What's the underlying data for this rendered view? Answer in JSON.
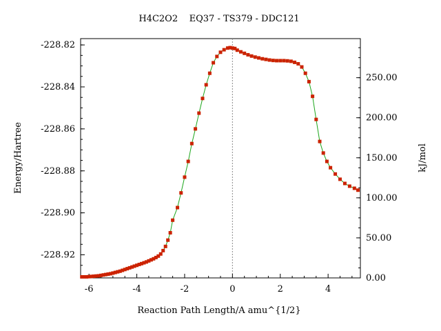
{
  "chart_data": {
    "type": "line",
    "title": "H4C2O2    EQ37 - TS379 - DDC121",
    "xlabel": "Reaction Path Length/A amu^{1/2}",
    "ylabel": "Energy/Hartree",
    "y2label": "kJ/mol",
    "xlim": [
      -6.35,
      5.35
    ],
    "ylim": [
      -228.931,
      -228.817
    ],
    "y2lim": [
      0,
      298.8
    ],
    "x_ticks": [
      -6,
      -4,
      -2,
      0,
      2,
      4
    ],
    "x_tick_labels": [
      "-6",
      "-4",
      "-2",
      "0",
      "2",
      "4"
    ],
    "y_ticks": [
      -228.82,
      -228.84,
      -228.86,
      -228.88,
      -228.9,
      -228.92
    ],
    "y_tick_labels": [
      "-228.82",
      "-228.84",
      "-228.86",
      "-228.88",
      "-228.90",
      "-228.92"
    ],
    "y2_ticks": [
      0,
      50,
      100,
      150,
      200,
      250
    ],
    "y2_tick_labels": [
      "0.00",
      "50.00",
      "100.00",
      "150.00",
      "200.00",
      "250.00"
    ],
    "ts_marker_x": 0,
    "grid": false,
    "line_color": "#1aa51a",
    "marker_color": "#cc2200",
    "series": [
      {
        "x": [
          -6.3,
          -6.2,
          -6.1,
          -6.0,
          -5.9,
          -5.8,
          -5.7,
          -5.6,
          -5.5,
          -5.4,
          -5.3,
          -5.2,
          -5.1,
          -5.0,
          -4.9,
          -4.8,
          -4.7,
          -4.6,
          -4.5,
          -4.4,
          -4.3,
          -4.2,
          -4.1,
          -4.0,
          -3.9,
          -3.8,
          -3.7,
          -3.6,
          -3.5,
          -3.4,
          -3.3,
          -3.2,
          -3.1,
          -3.0,
          -2.9,
          -2.8,
          -2.7,
          -2.6,
          -2.5,
          -2.3,
          -2.15,
          -2.0,
          -1.85,
          -1.7,
          -1.55,
          -1.4,
          -1.25,
          -1.1,
          -0.95,
          -0.8,
          -0.65,
          -0.5,
          -0.35,
          -0.2,
          -0.1,
          0.0,
          0.1,
          0.2,
          0.35,
          0.5,
          0.65,
          0.8,
          0.95,
          1.1,
          1.25,
          1.4,
          1.55,
          1.7,
          1.85,
          2.0,
          2.15,
          2.3,
          2.45,
          2.6,
          2.75,
          2.9,
          3.05,
          3.2,
          3.35,
          3.5,
          3.65,
          3.8,
          3.95,
          4.1,
          4.3,
          4.5,
          4.7,
          4.9,
          5.1,
          5.25
        ],
        "y": [
          -228.9305,
          -228.9305,
          -228.9305,
          -228.9304,
          -228.9303,
          -228.9302,
          -228.9301,
          -228.93,
          -228.9298,
          -228.9296,
          -228.9294,
          -228.9292,
          -228.929,
          -228.9287,
          -228.9284,
          -228.9281,
          -228.9278,
          -228.9274,
          -228.927,
          -228.9266,
          -228.9262,
          -228.9258,
          -228.9254,
          -228.925,
          -228.9246,
          -228.9242,
          -228.9238,
          -228.9234,
          -228.9229,
          -228.9224,
          -228.9219,
          -228.9213,
          -228.9206,
          -228.9196,
          -228.918,
          -228.916,
          -228.913,
          -228.9095,
          -228.9035,
          -228.8975,
          -228.8905,
          -228.883,
          -228.8755,
          -228.867,
          -228.86,
          -228.8525,
          -228.8455,
          -228.839,
          -228.8335,
          -228.8285,
          -228.8255,
          -228.8235,
          -228.8223,
          -228.8215,
          -228.8213,
          -228.8215,
          -228.8217,
          -228.8225,
          -228.8233,
          -228.824,
          -228.8247,
          -228.8253,
          -228.8258,
          -228.8262,
          -228.8266,
          -228.8269,
          -228.8272,
          -228.8274,
          -228.8275,
          -228.8275,
          -228.8275,
          -228.8276,
          -228.8278,
          -228.8283,
          -228.829,
          -228.8305,
          -228.8335,
          -228.8375,
          -228.8445,
          -228.8555,
          -228.866,
          -228.8715,
          -228.8755,
          -228.8785,
          -228.8815,
          -228.884,
          -228.886,
          -228.8873,
          -228.8883,
          -228.8892
        ]
      }
    ]
  }
}
